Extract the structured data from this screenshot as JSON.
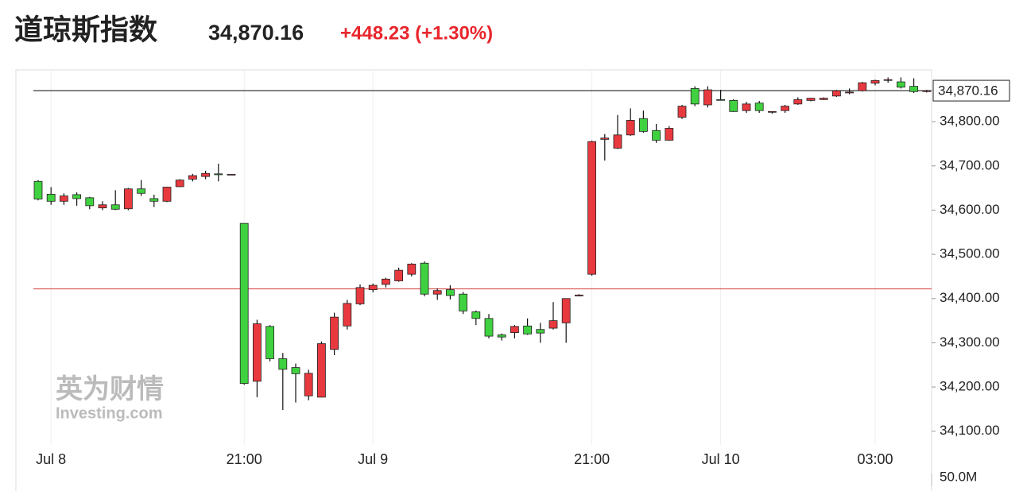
{
  "chart_data": {
    "type": "candlestick",
    "title": "道琼斯指数",
    "price": "34,870.16",
    "change": "+448.23 (+1.30%)",
    "watermark": [
      "英为财情",
      "Investing.com"
    ],
    "volume_axis_label": "50.0M",
    "categories": [
      null,
      "Jul 8",
      null,
      null,
      null,
      null,
      null,
      null,
      null,
      null,
      null,
      null,
      null,
      null,
      null,
      null,
      "21:00",
      null,
      null,
      null,
      null,
      null,
      null,
      null,
      null,
      null,
      "Jul 9",
      null,
      null,
      null,
      null,
      null,
      null,
      null,
      null,
      null,
      null,
      null,
      null,
      null,
      null,
      null,
      null,
      "21:00",
      null,
      null,
      null,
      null,
      null,
      null,
      null,
      null,
      null,
      "Jul 10",
      null,
      null,
      null,
      null,
      null,
      null,
      null,
      null,
      null,
      null,
      null,
      "03:00",
      null,
      null,
      null,
      null
    ],
    "open": [
      34665,
      34636,
      34620,
      34635,
      34628,
      34605,
      34612,
      34603,
      34648,
      34626,
      34620,
      34653,
      34670,
      34676,
      34682,
      34680,
      34570,
      34213,
      34337,
      34264,
      34244,
      34180,
      34177,
      34285,
      34338,
      34388,
      34420,
      34432,
      34440,
      34455,
      34480,
      34410,
      34420,
      34410,
      34370,
      34355,
      34318,
      34323,
      34338,
      34330,
      34333,
      34345,
      34406,
      34455,
      34760,
      34740,
      34770,
      34807,
      34780,
      34758,
      34810,
      34875,
      34838,
      34850,
      34848,
      34825,
      34842,
      34822,
      34825,
      34840,
      34848,
      34850,
      34858,
      34865,
      34870,
      34887,
      34894,
      34890,
      34880,
      34868
    ],
    "high": [
      34668,
      34652,
      34638,
      34640,
      34630,
      34620,
      34645,
      34650,
      34668,
      34635,
      34653,
      34670,
      34682,
      34689,
      34705,
      34681,
      34570,
      34352,
      34340,
      34277,
      34253,
      34239,
      34303,
      34368,
      34397,
      34432,
      34434,
      34447,
      34470,
      34480,
      34484,
      34423,
      34430,
      34415,
      34373,
      34365,
      34321,
      34340,
      34355,
      34345,
      34392,
      34400,
      34410,
      34757,
      34772,
      34815,
      34830,
      34825,
      34795,
      34790,
      34838,
      34880,
      34880,
      34872,
      34851,
      34845,
      34847,
      34823,
      34838,
      34855,
      34854,
      34855,
      34872,
      34875,
      34890,
      34895,
      34900,
      34900,
      34898,
      34872
    ],
    "low": [
      34622,
      34612,
      34612,
      34610,
      34602,
      34600,
      34600,
      34600,
      34632,
      34607,
      34618,
      34652,
      34665,
      34670,
      34665,
      34680,
      34205,
      34177,
      34258,
      34148,
      34165,
      34170,
      34177,
      34272,
      34330,
      34385,
      34414,
      34425,
      34438,
      34450,
      34405,
      34397,
      34398,
      34365,
      34340,
      34310,
      34305,
      34310,
      34318,
      34300,
      34330,
      34300,
      34405,
      34452,
      34712,
      34738,
      34768,
      34775,
      34752,
      34757,
      34806,
      34835,
      34832,
      34848,
      34822,
      34820,
      34820,
      34818,
      34820,
      34838,
      34846,
      34849,
      34856,
      34862,
      34868,
      34882,
      34888,
      34875,
      34865,
      34866
    ],
    "close": [
      34625,
      34620,
      34632,
      34626,
      34610,
      34612,
      34602,
      34648,
      34638,
      34620,
      34652,
      34668,
      34678,
      34683,
      34680,
      34681,
      34208,
      34343,
      34264,
      34240,
      34230,
      34231,
      34298,
      34358,
      34389,
      34425,
      34430,
      34444,
      34464,
      34478,
      34410,
      34418,
      34407,
      34372,
      34355,
      34315,
      34313,
      34337,
      34320,
      34322,
      34350,
      34400,
      34408,
      34755,
      34763,
      34770,
      34803,
      34778,
      34758,
      34785,
      34835,
      34840,
      34872,
      34849,
      34823,
      34840,
      34825,
      34823,
      34835,
      34850,
      34853,
      34853,
      34870,
      34867,
      34888,
      34893,
      34895,
      34878,
      34868,
      34870
    ],
    "up_color": "#e8393f",
    "down_color": "#3fd13f",
    "ylim": [
      34060,
      34917
    ],
    "yticks": [
      {
        "value": 34100,
        "label": "34,100.00"
      },
      {
        "value": 34200,
        "label": "34,200.00"
      },
      {
        "value": 34300,
        "label": "34,300.00"
      },
      {
        "value": 34400,
        "label": "34,400.00"
      },
      {
        "value": 34500,
        "label": "34,500.00"
      },
      {
        "value": 34600,
        "label": "34,600.00"
      },
      {
        "value": 34700,
        "label": "34,700.00"
      },
      {
        "value": 34800,
        "label": "34,800.00"
      }
    ],
    "last_line": {
      "value": 34870.16,
      "label": "34,870.16"
    },
    "prev_close": 34421.93,
    "grid": false
  }
}
